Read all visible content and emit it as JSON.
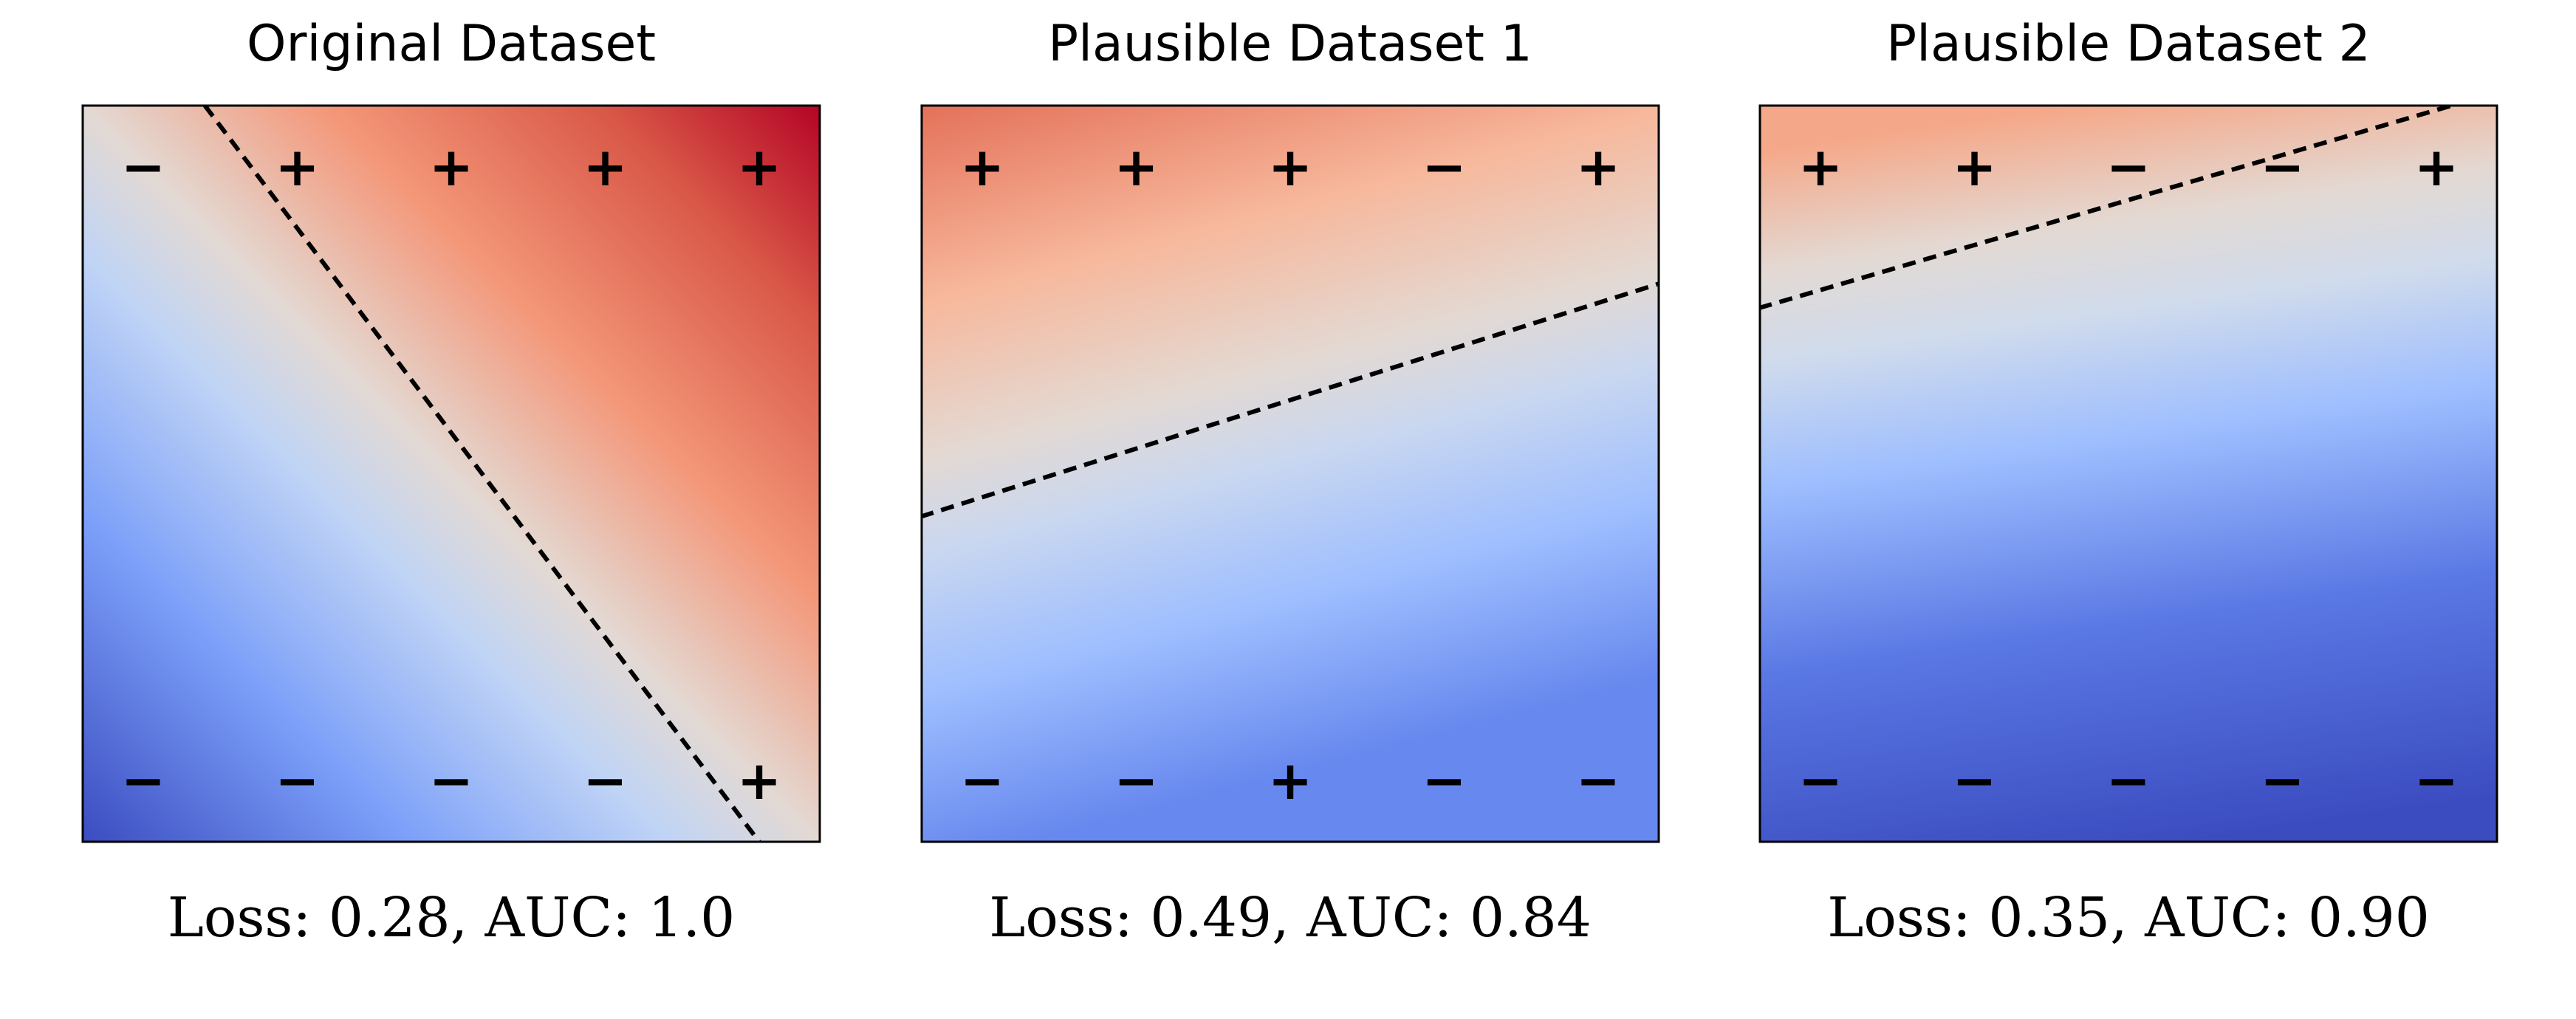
{
  "chart_data": [
    {
      "type": "heatmap",
      "title": "Original Dataset",
      "caption": "Loss: 0.28, AUC: 1.0",
      "colormap": [
        "#3b4cc0",
        "#dddddd",
        "#b40426"
      ],
      "xlim": [
        0,
        4
      ],
      "ylim": [
        0,
        1
      ],
      "grid": false,
      "boundary": {
        "x": [
          0.4,
          4.0
        ],
        "y": [
          1.1,
          -0.1
        ]
      },
      "points": [
        {
          "x": 0,
          "y": 1,
          "label": "−"
        },
        {
          "x": 1,
          "y": 1,
          "label": "+"
        },
        {
          "x": 2,
          "y": 1,
          "label": "+"
        },
        {
          "x": 3,
          "y": 1,
          "label": "+"
        },
        {
          "x": 4,
          "y": 1,
          "label": "+"
        },
        {
          "x": 0,
          "y": 0,
          "label": "−"
        },
        {
          "x": 1,
          "y": 0,
          "label": "−"
        },
        {
          "x": 2,
          "y": 0,
          "label": "−"
        },
        {
          "x": 3,
          "y": 0,
          "label": "−"
        },
        {
          "x": 4,
          "y": 0,
          "label": "+"
        }
      ]
    },
    {
      "type": "heatmap",
      "title": "Plausible Dataset 1",
      "caption": "Loss: 0.49, AUC: 0.84",
      "colormap": [
        "#3b4cc0",
        "#dddddd",
        "#b40426"
      ],
      "xlim": [
        0,
        4
      ],
      "ylim": [
        0,
        1
      ],
      "grid": false,
      "boundary": {
        "x": [
          -0.4,
          4.4
        ],
        "y": [
          0.43,
          0.81
        ]
      },
      "points": [
        {
          "x": 0,
          "y": 1,
          "label": "+"
        },
        {
          "x": 1,
          "y": 1,
          "label": "+"
        },
        {
          "x": 2,
          "y": 1,
          "label": "+"
        },
        {
          "x": 3,
          "y": 1,
          "label": "−"
        },
        {
          "x": 4,
          "y": 1,
          "label": "+"
        },
        {
          "x": 0,
          "y": 0,
          "label": "−"
        },
        {
          "x": 1,
          "y": 0,
          "label": "−"
        },
        {
          "x": 2,
          "y": 0,
          "label": "+"
        },
        {
          "x": 3,
          "y": 0,
          "label": "−"
        },
        {
          "x": 4,
          "y": 0,
          "label": "−"
        }
      ]
    },
    {
      "type": "heatmap",
      "title": "Plausible Dataset 2",
      "caption": "Loss: 0.35, AUC: 0.90",
      "colormap": [
        "#3b4cc0",
        "#dddddd",
        "#b40426"
      ],
      "xlim": [
        0,
        4
      ],
      "ylim": [
        0,
        1
      ],
      "grid": false,
      "boundary": {
        "x": [
          -0.4,
          4.1
        ],
        "y": [
          0.77,
          1.1
        ]
      },
      "points": [
        {
          "x": 0,
          "y": 1,
          "label": "+"
        },
        {
          "x": 1,
          "y": 1,
          "label": "+"
        },
        {
          "x": 2,
          "y": 1,
          "label": "−"
        },
        {
          "x": 3,
          "y": 1,
          "label": "−"
        },
        {
          "x": 4,
          "y": 1,
          "label": "+"
        },
        {
          "x": 0,
          "y": 0,
          "label": "−"
        },
        {
          "x": 1,
          "y": 0,
          "label": "−"
        },
        {
          "x": 2,
          "y": 0,
          "label": "−"
        },
        {
          "x": 3,
          "y": 0,
          "label": "−"
        },
        {
          "x": 4,
          "y": 0,
          "label": "−"
        }
      ]
    }
  ]
}
